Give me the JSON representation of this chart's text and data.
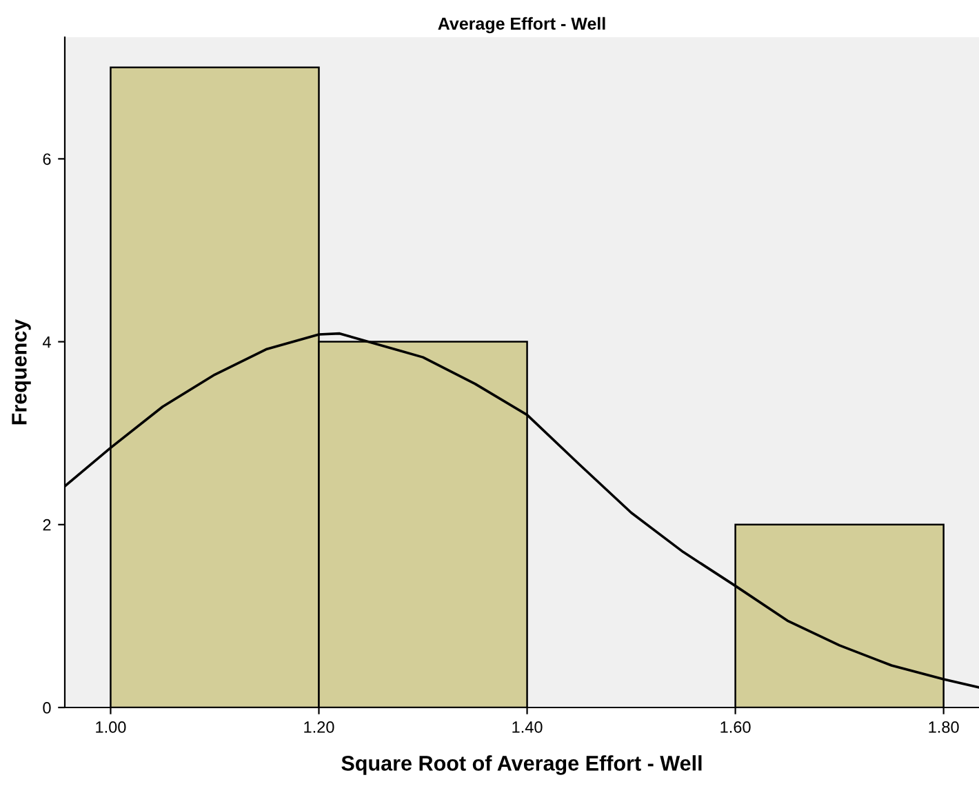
{
  "chart_data": {
    "type": "histogram",
    "title": "Average Effort - Well",
    "xlabel": "Square Root of Average Effort - Well",
    "ylabel": "Frequency",
    "bins": [
      1.0,
      1.2,
      1.4,
      1.6,
      1.8
    ],
    "values": [
      7,
      4,
      0,
      2
    ],
    "color": "#d3ce98",
    "series": [
      {
        "type": "line",
        "color": "#000000",
        "x": [
          0.956,
          1.0,
          1.05,
          1.1,
          1.15,
          1.2,
          1.22,
          1.3,
          1.35,
          1.4,
          1.45,
          1.5,
          1.55,
          1.6,
          1.65,
          1.7,
          1.75,
          1.8,
          1.834
        ],
        "values": [
          2.42,
          2.84,
          3.29,
          3.64,
          3.92,
          4.08,
          4.09,
          3.83,
          3.54,
          3.2,
          2.66,
          2.13,
          1.7,
          1.33,
          0.95,
          0.68,
          0.46,
          0.31,
          0.22
        ]
      }
    ],
    "xlim": [
      0.956,
      1.834
    ],
    "ylim": [
      0,
      7.33
    ],
    "xticks": [
      {
        "value": 1.0,
        "label": "1.00"
      },
      {
        "value": 1.2,
        "label": "1.20"
      },
      {
        "value": 1.4,
        "label": "1.40"
      },
      {
        "value": 1.6,
        "label": "1.60"
      },
      {
        "value": 1.8,
        "label": "1.80"
      }
    ],
    "yticks": [
      0,
      2,
      4,
      6
    ],
    "grid": false,
    "legend": false
  }
}
